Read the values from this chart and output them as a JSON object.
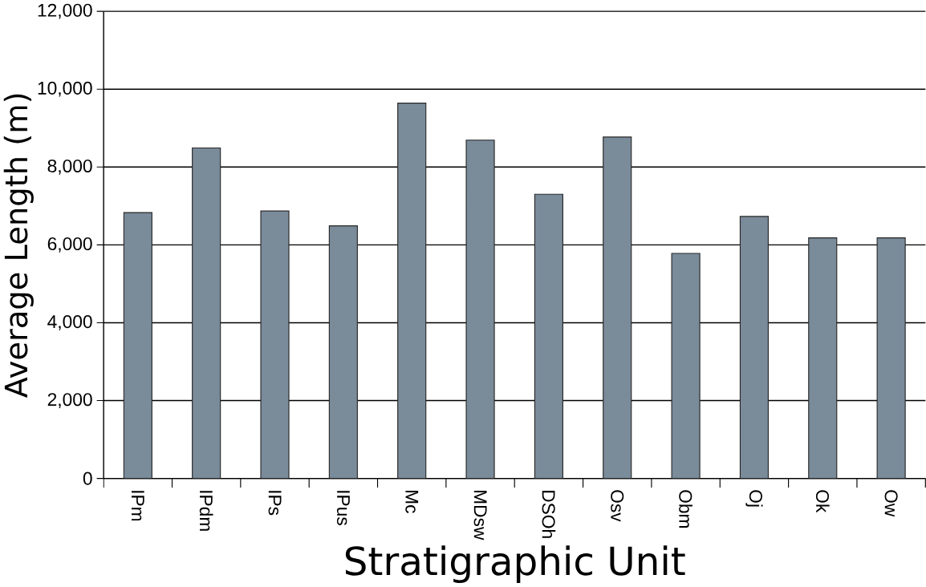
{
  "chart_data": {
    "type": "bar",
    "xlabel": "Stratigraphic Unit",
    "ylabel": "Average Length (m)",
    "categories": [
      "IPm",
      "IPdm",
      "IPs",
      "IPus",
      "Mc",
      "MDsw",
      "DSOh",
      "Osv",
      "Obm",
      "Oj",
      "Ok",
      "Ow"
    ],
    "values": [
      6830,
      8490,
      6870,
      6490,
      9640,
      8690,
      7300,
      8770,
      5780,
      6730,
      6180,
      6180
    ],
    "color": "#7a8b9a",
    "ylim": [
      0,
      12000
    ],
    "yticks": [
      {
        "value": 0,
        "label": "0"
      },
      {
        "value": 2000,
        "label": "2,000"
      },
      {
        "value": 4000,
        "label": "4,000"
      },
      {
        "value": 6000,
        "label": "6,000"
      },
      {
        "value": 8000,
        "label": "8,000"
      },
      {
        "value": 10000,
        "label": "10,000"
      },
      {
        "value": 12000,
        "label": "12,000"
      }
    ],
    "grid": "y"
  }
}
